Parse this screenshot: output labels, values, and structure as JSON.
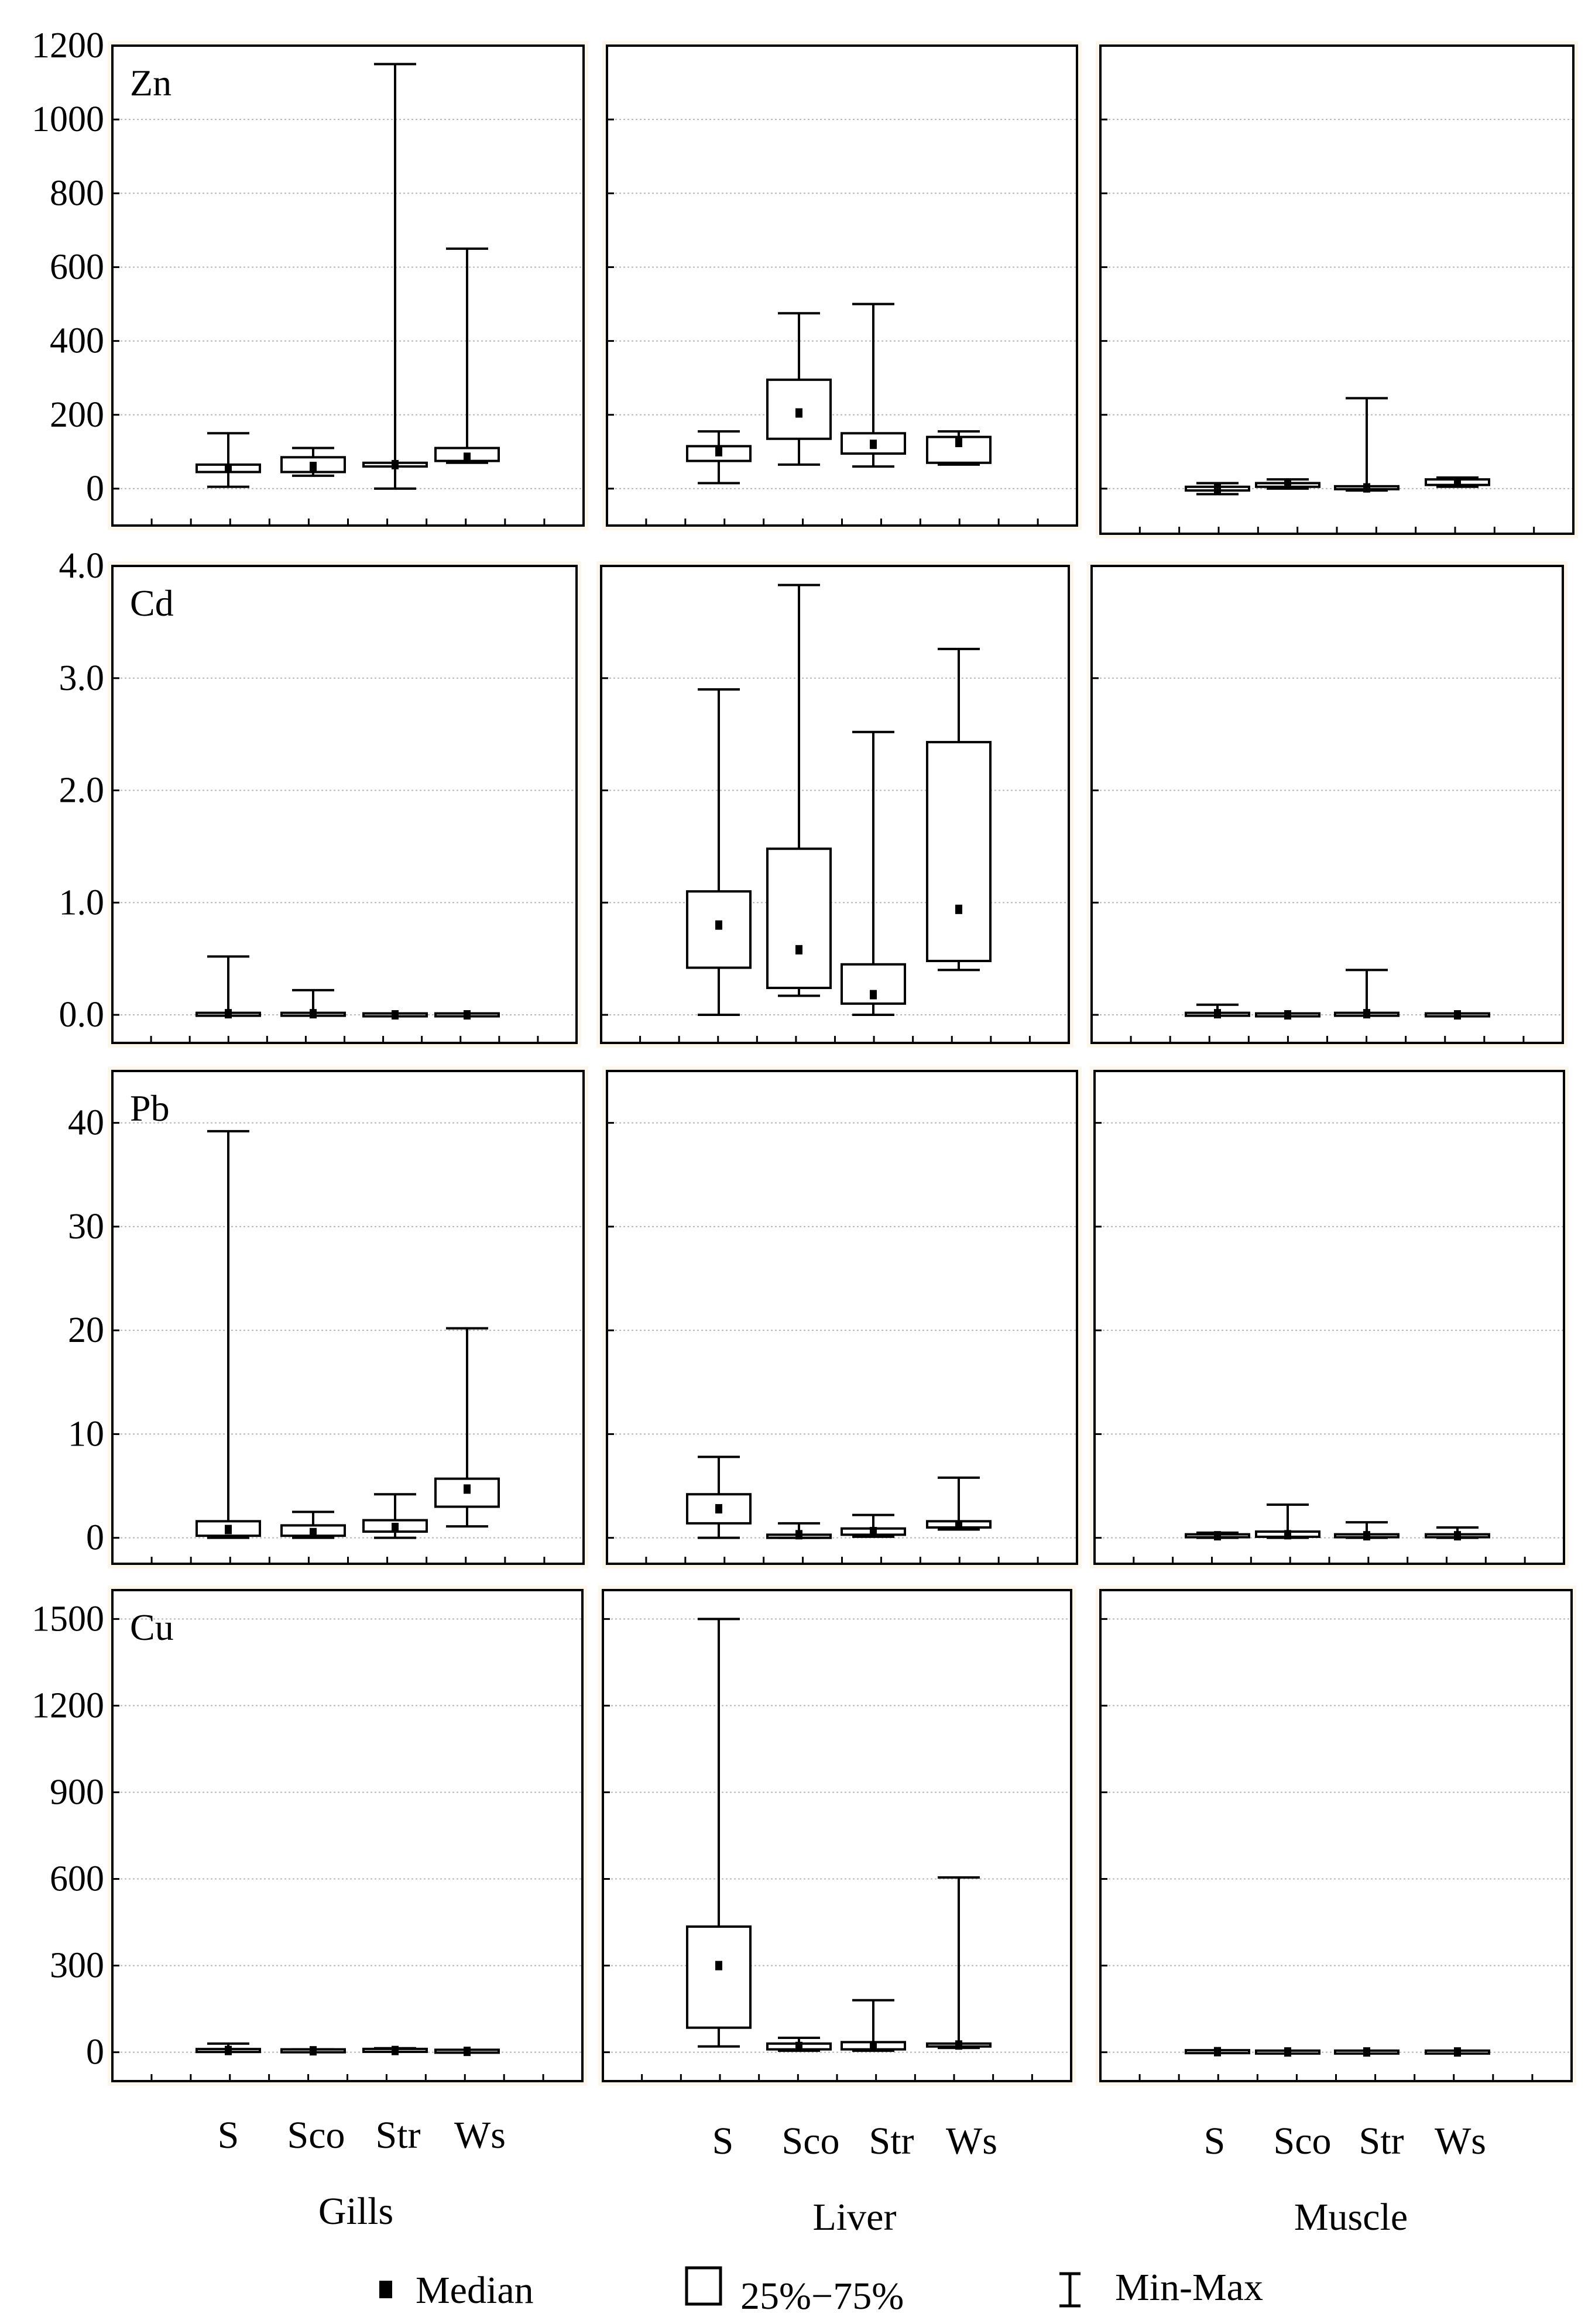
{
  "figure": {
    "type": "boxplot",
    "panel_background": "#ffffff",
    "strip_color": "#fdf6ec",
    "line_color": "#000000",
    "grid_color": "#b8b8b8"
  },
  "legend": {
    "median_label": "Median",
    "box_label": "25%−75%",
    "whisker_label": "Min-Max"
  },
  "chart_data": [
    {
      "metal": "Zn",
      "yticks": [
        "1200",
        "1000",
        "800",
        "600",
        "400",
        "200",
        "0"
      ],
      "tick_values": [
        1200,
        1000,
        800,
        600,
        400,
        200,
        0
      ],
      "ylim": [
        -100,
        1200
      ],
      "panels": [
        {
          "tissue": "Gills",
          "boxes": [
            {
              "cat": "S",
              "min": 5,
              "q1": 45,
              "median": 55,
              "q3": 65,
              "max": 150
            },
            {
              "cat": "Sco",
              "min": 35,
              "q1": 45,
              "median": 60,
              "q3": 85,
              "max": 110
            },
            {
              "cat": "Str",
              "min": 0,
              "q1": 60,
              "median": 65,
              "q3": 70,
              "max": 1150
            },
            {
              "cat": "Ws",
              "min": 70,
              "q1": 75,
              "median": 85,
              "q3": 110,
              "max": 650
            }
          ]
        },
        {
          "tissue": "Liver",
          "boxes": [
            {
              "cat": "S",
              "min": 15,
              "q1": 75,
              "median": 100,
              "q3": 115,
              "max": 155
            },
            {
              "cat": "Sco",
              "min": 65,
              "q1": 135,
              "median": 205,
              "q3": 295,
              "max": 475
            },
            {
              "cat": "Str",
              "min": 60,
              "q1": 95,
              "median": 120,
              "q3": 150,
              "max": 500
            },
            {
              "cat": "Ws",
              "min": 65,
              "q1": 70,
              "median": 125,
              "q3": 140,
              "max": 155
            }
          ]
        },
        {
          "tissue": "Muscle",
          "boxes": [
            {
              "cat": "S",
              "min": -15,
              "q1": -5,
              "median": 0,
              "q3": 5,
              "max": 15
            },
            {
              "cat": "Sco",
              "min": 0,
              "q1": 5,
              "median": 10,
              "q3": 15,
              "max": 25
            },
            {
              "cat": "Str",
              "min": -5,
              "q1": 0,
              "median": 2,
              "q3": 5,
              "max": 245
            },
            {
              "cat": "Ws",
              "min": 5,
              "q1": 10,
              "median": 15,
              "q3": 25,
              "max": 30
            }
          ]
        }
      ]
    },
    {
      "metal": "Cd",
      "yticks": [
        "4.0",
        "3.0",
        "2.0",
        "1.0",
        "0.0"
      ],
      "tick_values": [
        4,
        3,
        2,
        1,
        0
      ],
      "ylim": [
        -0.25,
        4.0
      ],
      "panels": [
        {
          "tissue": "Gills",
          "boxes": [
            {
              "cat": "S",
              "min": 0,
              "q1": 0,
              "median": 0.01,
              "q3": 0.01,
              "max": 0.52
            },
            {
              "cat": "Sco",
              "min": 0,
              "q1": 0,
              "median": 0.01,
              "q3": 0.01,
              "max": 0.22
            },
            {
              "cat": "Str",
              "min": 0,
              "q1": 0,
              "median": 0,
              "q3": 0,
              "max": 0.01
            },
            {
              "cat": "Ws",
              "min": 0,
              "q1": 0,
              "median": 0,
              "q3": 0,
              "max": 0.01
            }
          ]
        },
        {
          "tissue": "Liver",
          "boxes": [
            {
              "cat": "S",
              "min": 0,
              "q1": 0.42,
              "median": 0.8,
              "q3": 1.1,
              "max": 2.9
            },
            {
              "cat": "Sco",
              "min": 0.17,
              "q1": 0.24,
              "median": 0.58,
              "q3": 1.48,
              "max": 3.83
            },
            {
              "cat": "Str",
              "min": 0,
              "q1": 0.1,
              "median": 0.18,
              "q3": 0.45,
              "max": 2.52
            },
            {
              "cat": "Ws",
              "min": 0.4,
              "q1": 0.48,
              "median": 0.94,
              "q3": 2.43,
              "max": 3.26
            }
          ]
        },
        {
          "tissue": "Muscle",
          "boxes": [
            {
              "cat": "S",
              "min": 0,
              "q1": 0,
              "median": 0.01,
              "q3": 0.01,
              "max": 0.09
            },
            {
              "cat": "Sco",
              "min": 0,
              "q1": 0,
              "median": 0,
              "q3": 0,
              "max": 0.01
            },
            {
              "cat": "Str",
              "min": 0,
              "q1": 0,
              "median": 0.01,
              "q3": 0.01,
              "max": 0.4
            },
            {
              "cat": "Ws",
              "min": 0,
              "q1": 0,
              "median": 0,
              "q3": 0,
              "max": 0.01
            }
          ]
        }
      ]
    },
    {
      "metal": "Pb",
      "yticks": [
        "40",
        "30",
        "20",
        "10",
        "0"
      ],
      "tick_values": [
        40,
        30,
        20,
        10,
        0
      ],
      "ylim": [
        -2.5,
        45
      ],
      "panels": [
        {
          "tissue": "Gills",
          "boxes": [
            {
              "cat": "S",
              "min": 0,
              "q1": 0.2,
              "median": 0.8,
              "q3": 1.6,
              "max": 39.2
            },
            {
              "cat": "Sco",
              "min": 0,
              "q1": 0.2,
              "median": 0.5,
              "q3": 1.2,
              "max": 2.5
            },
            {
              "cat": "Str",
              "min": 0,
              "q1": 0.6,
              "median": 1,
              "q3": 1.7,
              "max": 4.2
            },
            {
              "cat": "Ws",
              "min": 1.1,
              "q1": 3,
              "median": 4.7,
              "q3": 5.7,
              "max": 20.2
            }
          ]
        },
        {
          "tissue": "Liver",
          "boxes": [
            {
              "cat": "S",
              "min": 0,
              "q1": 1.4,
              "median": 2.8,
              "q3": 4.2,
              "max": 7.8
            },
            {
              "cat": "Sco",
              "min": 0,
              "q1": 0,
              "median": 0.3,
              "q3": 0.3,
              "max": 1.4
            },
            {
              "cat": "Str",
              "min": 0.1,
              "q1": 0.3,
              "median": 0.6,
              "q3": 0.9,
              "max": 2.2
            },
            {
              "cat": "Ws",
              "min": 0.8,
              "q1": 1,
              "median": 1.2,
              "q3": 1.6,
              "max": 5.8
            }
          ]
        },
        {
          "tissue": "Muscle",
          "boxes": [
            {
              "cat": "S",
              "min": 0,
              "q1": 0.1,
              "median": 0.2,
              "q3": 0.3,
              "max": 0.5
            },
            {
              "cat": "Sco",
              "min": 0,
              "q1": 0.1,
              "median": 0.3,
              "q3": 0.6,
              "max": 3.2
            },
            {
              "cat": "Str",
              "min": 0,
              "q1": 0.1,
              "median": 0.2,
              "q3": 0.3,
              "max": 1.5
            },
            {
              "cat": "Ws",
              "min": 0,
              "q1": 0.1,
              "median": 0.2,
              "q3": 0.3,
              "max": 1
            }
          ]
        }
      ]
    },
    {
      "metal": "Cu",
      "yticks": [
        "1500",
        "1200",
        "900",
        "600",
        "300",
        "0"
      ],
      "tick_values": [
        1500,
        1200,
        900,
        600,
        300,
        0
      ],
      "ylim": [
        -100,
        1600
      ],
      "panels": [
        {
          "tissue": "Gills",
          "boxes": [
            {
              "cat": "S",
              "min": 2,
              "q1": 4,
              "median": 6,
              "q3": 8,
              "max": 30
            },
            {
              "cat": "Sco",
              "min": 2,
              "q1": 3,
              "median": 5,
              "q3": 7,
              "max": 10
            },
            {
              "cat": "Str",
              "min": 2,
              "q1": 4,
              "median": 6,
              "q3": 9,
              "max": 14
            },
            {
              "cat": "Ws",
              "min": 1,
              "q1": 2,
              "median": 3,
              "q3": 5,
              "max": 8
            }
          ]
        },
        {
          "tissue": "Liver",
          "boxes": [
            {
              "cat": "S",
              "min": 20,
              "q1": 85,
              "median": 300,
              "q3": 435,
              "max": 1500
            },
            {
              "cat": "Sco",
              "min": 5,
              "q1": 10,
              "median": 20,
              "q3": 30,
              "max": 50
            },
            {
              "cat": "Str",
              "min": 5,
              "q1": 10,
              "median": 20,
              "q3": 35,
              "max": 180
            },
            {
              "cat": "Ws",
              "min": 15,
              "q1": 20,
              "median": 25,
              "q3": 30,
              "max": 605
            }
          ]
        },
        {
          "tissue": "Muscle",
          "boxes": [
            {
              "cat": "S",
              "min": 0,
              "q1": 1,
              "median": 2,
              "q3": 3,
              "max": 5
            },
            {
              "cat": "Sco",
              "min": 0,
              "q1": 0,
              "median": 1,
              "q3": 1,
              "max": 2
            },
            {
              "cat": "Str",
              "min": 0,
              "q1": 0,
              "median": 1,
              "q3": 1,
              "max": 2
            },
            {
              "cat": "Ws",
              "min": 0,
              "q1": 0,
              "median": 1,
              "q3": 1,
              "max": 2
            }
          ]
        }
      ]
    }
  ],
  "x_axis": {
    "categories": [
      "S",
      "Sco",
      "Str",
      "Ws"
    ],
    "tissues": [
      "Gills",
      "Liver",
      "Muscle"
    ]
  }
}
